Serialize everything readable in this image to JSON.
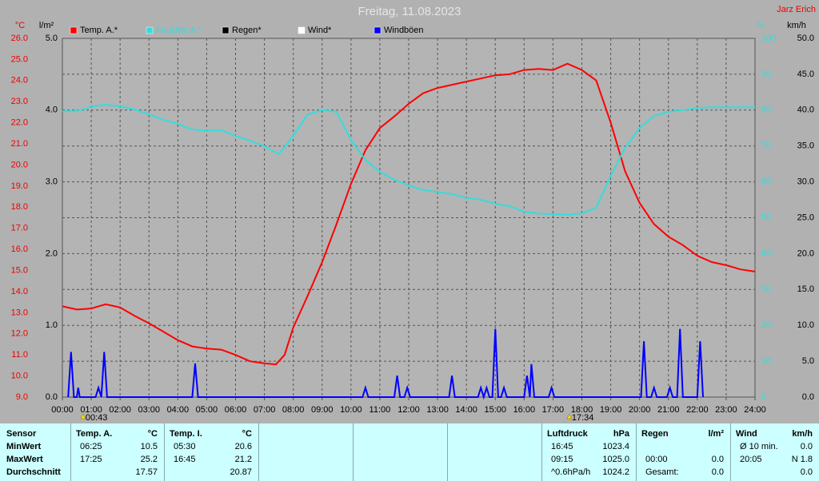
{
  "chart_data": {
    "type": "line",
    "title": "Freitag, 11.08.2023",
    "author": "Jarz Erich",
    "axis_titles": {
      "y": "°C",
      "y4": "l/m²",
      "y2": "%",
      "y3": "km/h"
    },
    "xlim": [
      0,
      24
    ],
    "xticks": [
      {
        "value": 0,
        "label": "00:00"
      },
      {
        "value": 1,
        "label": "01:00"
      },
      {
        "value": 2,
        "label": "02:00"
      },
      {
        "value": 3,
        "label": "03:00"
      },
      {
        "value": 4,
        "label": "04:00"
      },
      {
        "value": 5,
        "label": "05:00"
      },
      {
        "value": 6,
        "label": "06:00"
      },
      {
        "value": 7,
        "label": "07:00"
      },
      {
        "value": 8,
        "label": "08:00"
      },
      {
        "value": 9,
        "label": "09:00"
      },
      {
        "value": 10,
        "label": "10:00"
      },
      {
        "value": 11,
        "label": "11:00"
      },
      {
        "value": 12,
        "label": "12:00"
      },
      {
        "value": 13,
        "label": "13:00"
      },
      {
        "value": 14,
        "label": "14:00"
      },
      {
        "value": 15,
        "label": "15:00"
      },
      {
        "value": 16,
        "label": "16:00"
      },
      {
        "value": 17,
        "label": "17:00"
      },
      {
        "value": 18,
        "label": "18:00"
      },
      {
        "value": 19,
        "label": "19:00"
      },
      {
        "value": 20,
        "label": "20:00"
      },
      {
        "value": 21,
        "label": "21:00"
      },
      {
        "value": 22,
        "label": "22:00"
      },
      {
        "value": 23,
        "label": "23:00"
      },
      {
        "value": 24,
        "label": "24:00"
      }
    ],
    "ylim": [
      9,
      26
    ],
    "yticks": [
      {
        "value": 9,
        "label": "9.0"
      },
      {
        "value": 10,
        "label": "10.0"
      },
      {
        "value": 11,
        "label": "11.0"
      },
      {
        "value": 12,
        "label": "12.0"
      },
      {
        "value": 13,
        "label": "13.0"
      },
      {
        "value": 14,
        "label": "14.0"
      },
      {
        "value": 15,
        "label": "15.0"
      },
      {
        "value": 16,
        "label": "16.0"
      },
      {
        "value": 17,
        "label": "17.0"
      },
      {
        "value": 18,
        "label": "18.0"
      },
      {
        "value": 19,
        "label": "19.0"
      },
      {
        "value": 20,
        "label": "20.0"
      },
      {
        "value": 21,
        "label": "21.0"
      },
      {
        "value": 22,
        "label": "22.0"
      },
      {
        "value": 23,
        "label": "23.0"
      },
      {
        "value": 24,
        "label": "24.0"
      },
      {
        "value": 25,
        "label": "25.0"
      },
      {
        "value": 26,
        "label": "26.0"
      }
    ],
    "y4lim": [
      0,
      5
    ],
    "y4ticks": [
      {
        "value": 0,
        "label": "0.0"
      },
      {
        "value": 1,
        "label": "1.0"
      },
      {
        "value": 2,
        "label": "2.0"
      },
      {
        "value": 3,
        "label": "3.0"
      },
      {
        "value": 4,
        "label": "4.0"
      },
      {
        "value": 5,
        "label": "5.0"
      }
    ],
    "y2lim": [
      0,
      100
    ],
    "y2ticks": [
      0,
      10,
      20,
      30,
      40,
      50,
      60,
      70,
      80,
      90,
      100
    ],
    "y3lim": [
      0,
      50
    ],
    "y3ticks": [
      {
        "value": 0,
        "label": "0.0"
      },
      {
        "value": 5,
        "label": "5.0"
      },
      {
        "value": 10,
        "label": "10.0"
      },
      {
        "value": 15,
        "label": "15.0"
      },
      {
        "value": 20,
        "label": "20.0"
      },
      {
        "value": 25,
        "label": "25.0"
      },
      {
        "value": 30,
        "label": "30.0"
      },
      {
        "value": 35,
        "label": "35.0"
      },
      {
        "value": 40,
        "label": "40.0"
      },
      {
        "value": 45,
        "label": "45.0"
      },
      {
        "value": 50,
        "label": "50.0"
      }
    ],
    "grid": true,
    "series": [
      {
        "name": "Temp. A.*",
        "color": "#ff0000",
        "axis": "y",
        "x": [
          0,
          0.5,
          1,
          1.5,
          2,
          2.5,
          3,
          3.5,
          4,
          4.5,
          5,
          5.5,
          6,
          6.5,
          7,
          7.4,
          7.7,
          8,
          8.5,
          9,
          9.5,
          10,
          10.5,
          11,
          11.5,
          12,
          12.5,
          13,
          13.5,
          14,
          14.5,
          15,
          15.5,
          16,
          16.5,
          17,
          17.5,
          18,
          18.5,
          19,
          19.5,
          20,
          20.5,
          21,
          21.5,
          22,
          22.5,
          23,
          23.5,
          24
        ],
        "values": [
          13.3,
          13.15,
          13.2,
          13.4,
          13.25,
          12.85,
          12.5,
          12.1,
          11.7,
          11.4,
          11.3,
          11.25,
          11.0,
          10.7,
          10.6,
          10.55,
          11.0,
          12.3,
          13.8,
          15.4,
          17.2,
          19.1,
          20.7,
          21.75,
          22.3,
          22.9,
          23.4,
          23.65,
          23.8,
          23.95,
          24.1,
          24.25,
          24.3,
          24.5,
          24.55,
          24.5,
          24.8,
          24.5,
          24.0,
          22.0,
          19.7,
          18.2,
          17.2,
          16.6,
          16.2,
          15.7,
          15.4,
          15.25,
          15.05,
          14.95
        ]
      },
      {
        "name": "Feuchte A.*",
        "color": "#33dddd",
        "axis": "y2",
        "x": [
          0,
          0.5,
          1,
          1.5,
          2,
          2.5,
          3,
          3.5,
          4,
          4.5,
          5,
          5.5,
          6,
          6.5,
          7,
          7.5,
          8,
          8.5,
          9,
          9.5,
          10,
          10.5,
          11,
          11.5,
          12,
          12.5,
          13,
          13.5,
          14,
          14.5,
          15,
          15.5,
          16,
          16.5,
          17,
          17.5,
          18,
          18.5,
          19,
          19.5,
          20,
          20.5,
          21,
          21.5,
          22,
          22.5,
          23,
          24
        ],
        "values": [
          79.7,
          79.7,
          81,
          81.5,
          81,
          80.2,
          78.8,
          77.3,
          76.2,
          74.6,
          74.2,
          74.4,
          72.8,
          71.5,
          69.9,
          67.7,
          72.8,
          78.8,
          80,
          79.5,
          71.7,
          66.1,
          62.8,
          60.6,
          59,
          57.7,
          57.2,
          56.6,
          55.5,
          55,
          53.9,
          53.2,
          51.7,
          51.2,
          51,
          50.8,
          51.2,
          52.8,
          61.7,
          69.5,
          75,
          78.4,
          79.5,
          80,
          80.6,
          80.8,
          80.8,
          80.8
        ]
      },
      {
        "name": "Regen*",
        "color": "#000000",
        "axis": "y4",
        "x": [],
        "values": []
      },
      {
        "name": "Wind*",
        "color": "#ffffff",
        "axis": "y3",
        "x": [],
        "values": []
      },
      {
        "name": "Windböen",
        "color": "#0000ff",
        "axis": "y3",
        "x": [
          0.2,
          0.3,
          0.4,
          0.5,
          0.55,
          0.6,
          1.15,
          1.25,
          1.35,
          1.45,
          1.55,
          4.5,
          4.6,
          4.7,
          10.4,
          10.5,
          10.6,
          11.5,
          11.6,
          11.7,
          11.85,
          11.95,
          12.05,
          13.4,
          13.5,
          13.6,
          14.4,
          14.5,
          14.6,
          14.7,
          14.8,
          14.9,
          15.0,
          15.1,
          15.2,
          15.3,
          15.4,
          16.0,
          16.1,
          16.2,
          16.25,
          16.35,
          16.85,
          16.95,
          17.05,
          20.05,
          20.15,
          20.25,
          20.4,
          20.5,
          20.6,
          20.95,
          21.05,
          21.15,
          21.3,
          21.4,
          21.5,
          22.0,
          22.1,
          22.2
        ],
        "values": [
          0,
          6.3,
          0,
          0,
          1.3,
          0,
          0,
          1.3,
          0,
          6.3,
          0,
          0,
          4.7,
          0,
          0,
          1.3,
          0,
          0,
          3,
          0,
          0,
          1.3,
          0,
          0,
          3,
          0,
          0,
          1.3,
          0,
          1.3,
          0,
          0,
          9.5,
          0,
          0,
          1.3,
          0,
          0,
          3,
          0,
          4.6,
          0,
          0,
          1.3,
          0,
          0,
          7.8,
          0,
          0,
          1.3,
          0,
          0,
          1.3,
          0,
          0,
          9.5,
          0,
          0,
          7.8,
          0
        ]
      }
    ],
    "markers": [
      {
        "x": 0.7167,
        "label": "00:43"
      },
      {
        "x": 17.5667,
        "label": "17:34"
      }
    ]
  },
  "stats_table": {
    "row_labels": [
      "Sensor",
      "MinWert",
      "MaxWert",
      "Durchschnitt"
    ],
    "sections": [
      {
        "header": [
          "Temp. A.",
          "°C"
        ],
        "rows": [
          [
            "06:25",
            "10.5"
          ],
          [
            "17:25",
            "25.2"
          ],
          [
            null,
            "17.57"
          ]
        ]
      },
      {
        "header": [
          "Temp. I.",
          "°C"
        ],
        "rows": [
          [
            "05:30",
            "20.6"
          ],
          [
            "16:45",
            "21.2"
          ],
          [
            null,
            "20.87"
          ]
        ]
      },
      {
        "header": [
          "Luftdruck",
          "hPa"
        ],
        "rows": [
          [
            "16:45",
            "1023.4"
          ],
          [
            "09:15",
            "1025.0"
          ],
          [
            "^0.6hPa/h",
            "1024.2"
          ]
        ]
      },
      {
        "header": [
          "Regen",
          "l/m²"
        ],
        "rows": [
          [
            null,
            null
          ],
          [
            "00:00",
            "0.0"
          ],
          [
            "Gesamt:",
            "0.0"
          ]
        ]
      },
      {
        "header": [
          "Wind",
          "km/h"
        ],
        "rows": [
          [
            "Ø 10 min.",
            "0.0"
          ],
          [
            "20:05",
            "N 1.8"
          ],
          [
            null,
            "0.0"
          ]
        ]
      }
    ]
  }
}
